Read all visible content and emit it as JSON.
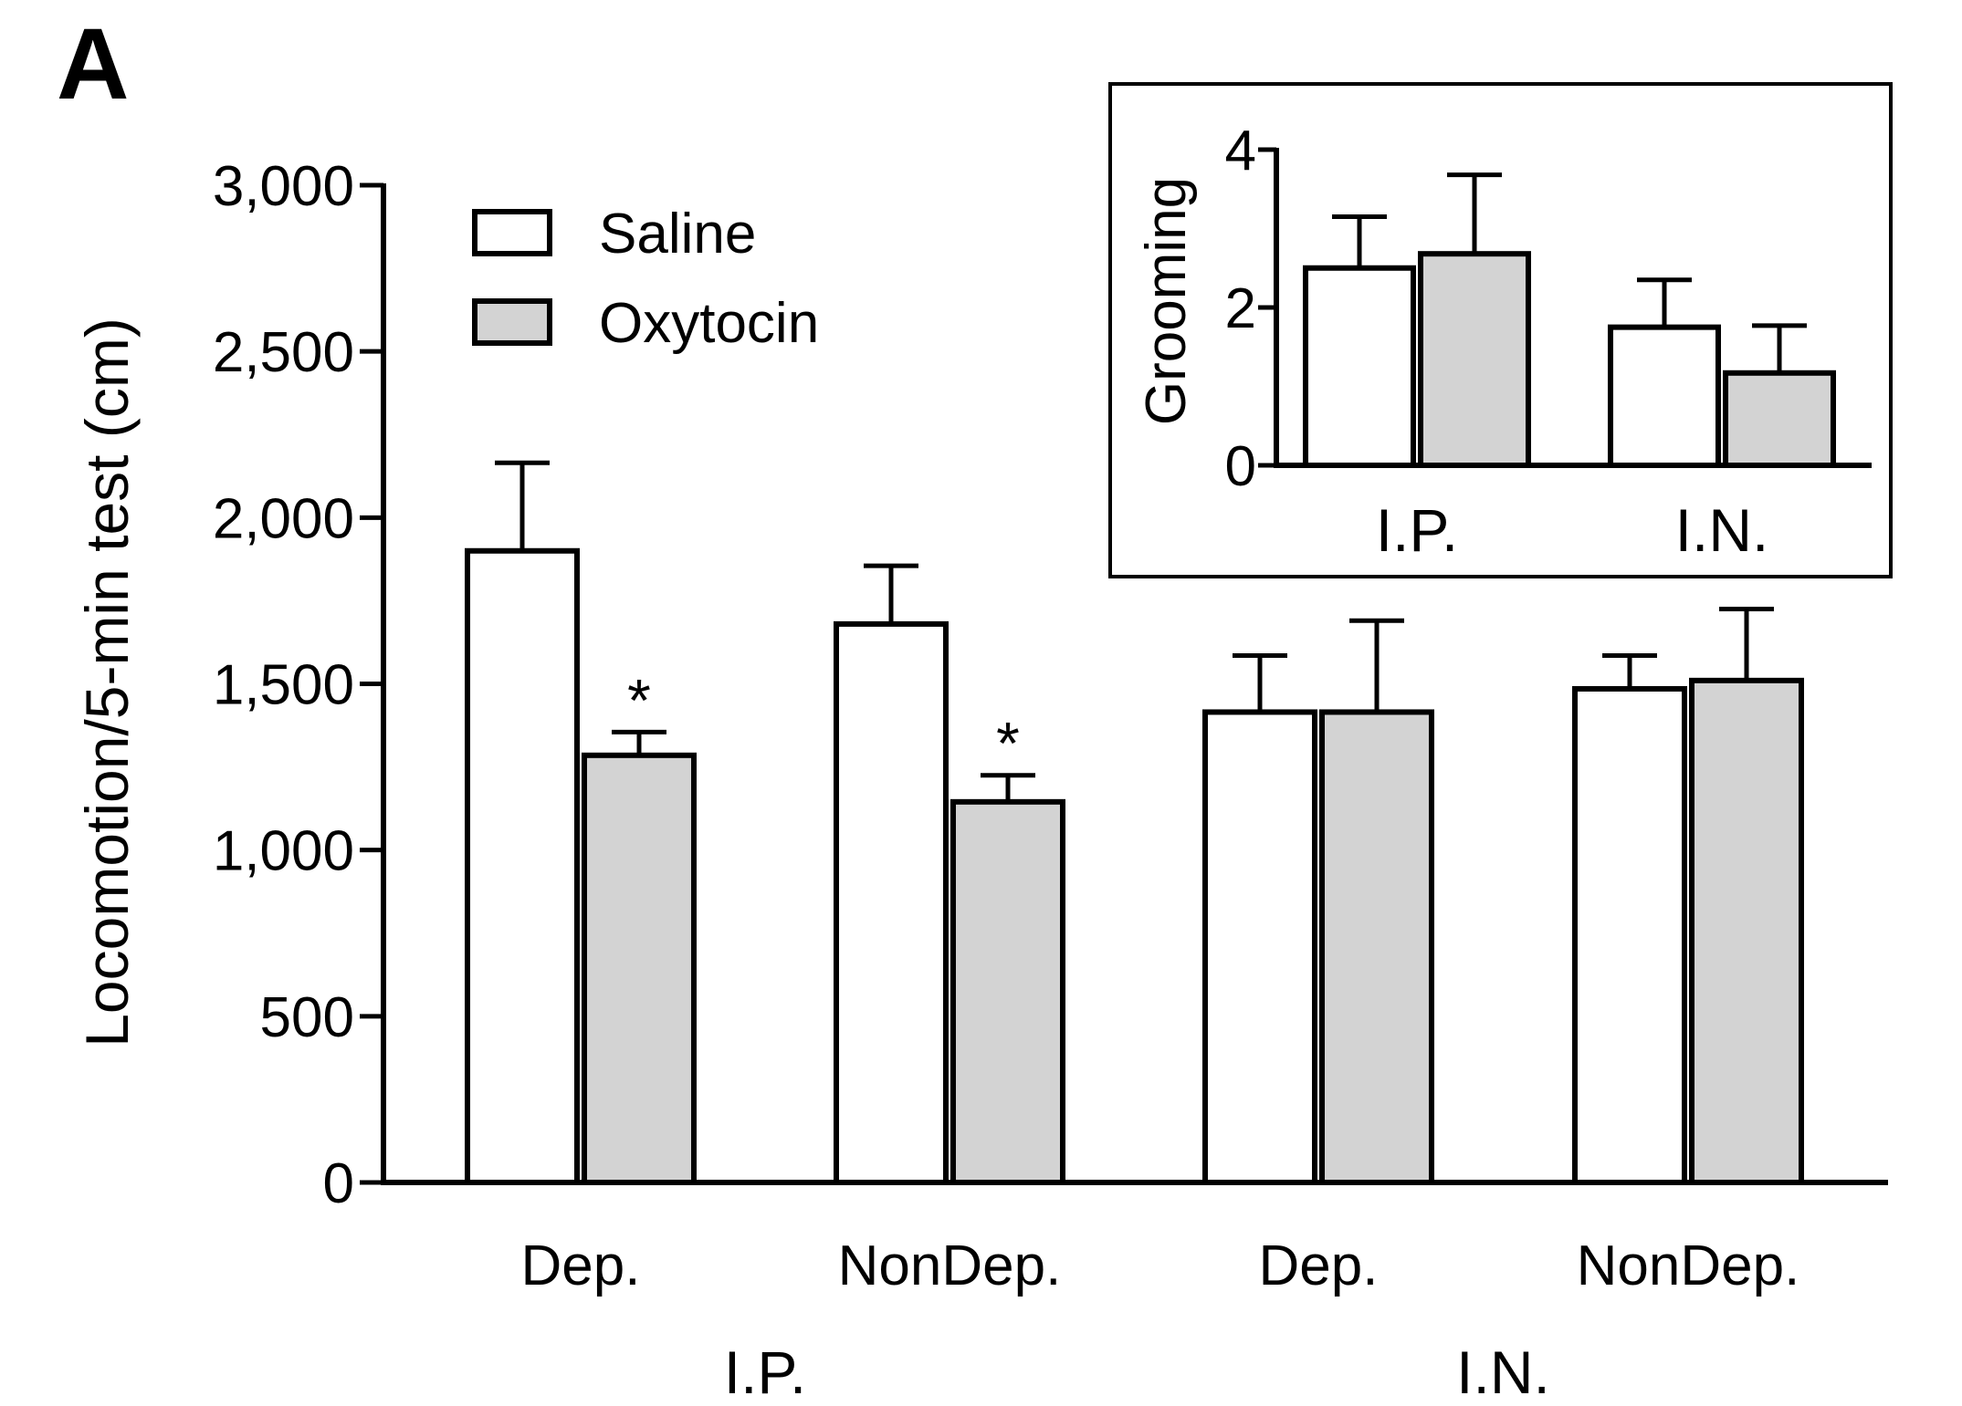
{
  "panel_label": "A",
  "colors": {
    "saline": "#ffffff",
    "oxytocin": "#d3d3d3",
    "stroke": "#000000"
  },
  "chart_data": [
    {
      "type": "bar",
      "ylabel": "Locomotion/5-min test (cm)",
      "ylim": [
        0,
        3000
      ],
      "yticks": [
        0,
        500,
        1000,
        1500,
        2000,
        2500,
        3000
      ],
      "ytick_labels": [
        "0",
        "500",
        "1,000",
        "1,500",
        "2,000",
        "2,500",
        "3,000"
      ],
      "groups": [
        {
          "label": "I.P.",
          "categories": [
            "Dep.",
            "NonDep."
          ]
        },
        {
          "label": "I.N.",
          "categories": [
            "Dep.",
            "NonDep."
          ]
        }
      ],
      "categories": [
        "Dep.",
        "NonDep.",
        "Dep.",
        "NonDep."
      ],
      "series": [
        {
          "name": "Saline",
          "values": [
            1900,
            1680,
            1415,
            1485
          ],
          "errors": [
            265,
            175,
            170,
            100
          ]
        },
        {
          "name": "Oxytocin",
          "values": [
            1285,
            1145,
            1415,
            1510
          ],
          "errors": [
            70,
            80,
            275,
            215
          ],
          "significance": [
            "*",
            "*",
            "",
            ""
          ]
        }
      ],
      "legend": "top-left",
      "grid": false
    },
    {
      "type": "bar",
      "inset": true,
      "legend_position": "top-right inset",
      "ylabel": "Grooming",
      "ylim": [
        0,
        4
      ],
      "yticks": [
        0,
        2,
        4
      ],
      "ytick_labels": [
        "0",
        "2",
        "4"
      ],
      "categories": [
        "I.P.",
        "I.N."
      ],
      "series": [
        {
          "name": "Saline",
          "values": [
            2.5,
            1.75
          ],
          "errors": [
            0.65,
            0.6
          ]
        },
        {
          "name": "Oxytocin",
          "values": [
            2.68,
            1.17
          ],
          "errors": [
            1.0,
            0.6
          ]
        }
      ],
      "grid": false
    }
  ]
}
